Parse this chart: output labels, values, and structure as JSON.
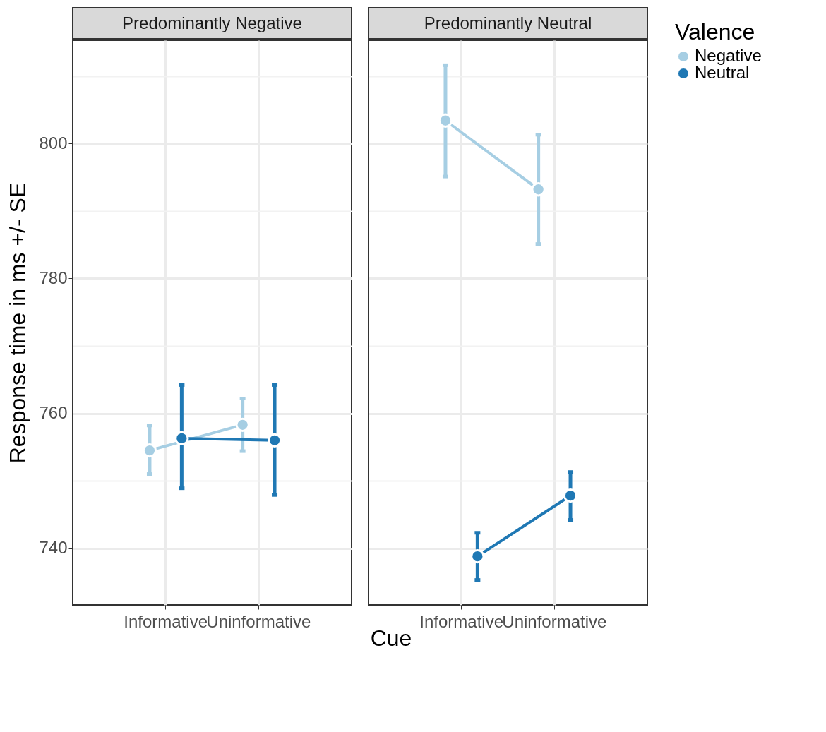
{
  "chart_data": [
    {
      "type": "line",
      "title": "Predominantly  Negative",
      "xlabel": "Cue",
      "ylabel": "Response time in ms +/- SE",
      "categories": [
        "Informative",
        "Uninformative"
      ],
      "ylim": [
        731.6,
        815.3
      ],
      "yticks": [
        740,
        {
          "value": 750,
          "label": null
        },
        760,
        {
          "value": 770,
          "label": null
        },
        780,
        {
          "value": 790,
          "label": null
        },
        800,
        {
          "value": 810,
          "label": null
        }
      ],
      "grid": true,
      "marker": "circle",
      "legend": "right",
      "series": [
        {
          "name": "Negative",
          "color": "#a6cee3",
          "values": [
            754.5,
            758.3
          ],
          "errors": [
            [
              751.0,
              758.2
            ],
            [
              754.4,
              762.2
            ]
          ]
        },
        {
          "name": "Neutral",
          "color": "#1f78b4",
          "values": [
            756.3,
            756.0
          ],
          "errors": [
            [
              748.9,
              764.2
            ],
            [
              747.9,
              764.2
            ]
          ]
        }
      ]
    },
    {
      "type": "line",
      "title": "Predominantly  Neutral",
      "legend_title": "Valence",
      "categories": [
        "Informative",
        "Uninformative"
      ],
      "ylim": [
        731.6,
        815.3
      ],
      "yticks": [
        740,
        {
          "value": 750,
          "label": null
        },
        760,
        {
          "value": 770,
          "label": null
        },
        780,
        {
          "value": 790,
          "label": null
        },
        800,
        {
          "value": 810,
          "label": null
        }
      ],
      "tick_labels": "x",
      "grid": true,
      "marker": "circle",
      "legend": "right",
      "series": [
        {
          "name": "Negative",
          "color": "#a6cee3",
          "values": [
            803.4,
            793.2
          ],
          "errors": [
            [
              795.1,
              811.6
            ],
            [
              785.1,
              801.3
            ]
          ]
        },
        {
          "name": "Neutral",
          "color": "#1f78b4",
          "values": [
            738.8,
            747.8
          ],
          "errors": [
            [
              735.3,
              742.3
            ],
            [
              744.2,
              751.3
            ]
          ]
        }
      ]
    }
  ]
}
